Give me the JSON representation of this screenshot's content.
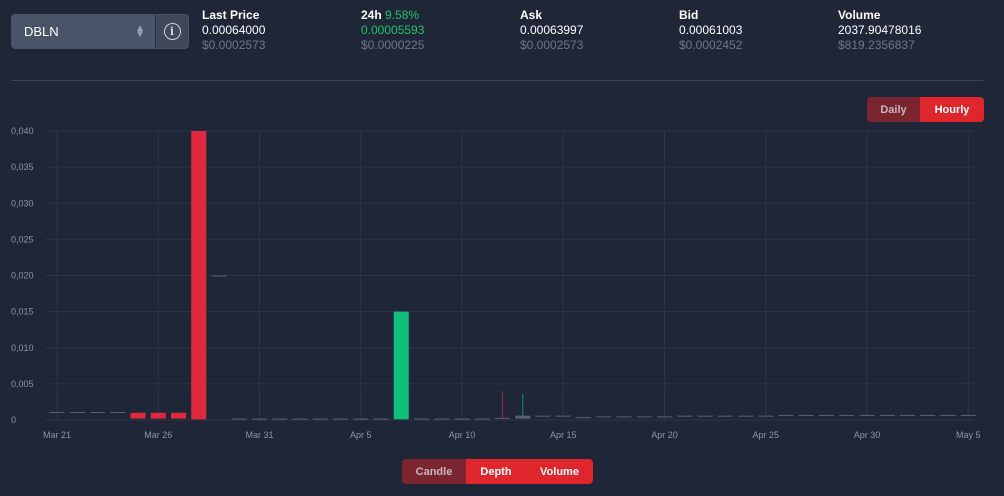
{
  "pair": {
    "selected": "DBLN"
  },
  "stats": [
    {
      "label": "Last Price",
      "change": "",
      "value": "0.00064000",
      "usd": "$0.0002573",
      "value_green": false
    },
    {
      "label": "24h",
      "change": "9.58%",
      "value": "0.00005593",
      "usd": "$0.0000225",
      "value_green": true
    },
    {
      "label": "Ask",
      "change": "",
      "value": "0.00063997",
      "usd": "$0.0002573",
      "value_green": false
    },
    {
      "label": "Bid",
      "change": "",
      "value": "0.00061003",
      "usd": "$0.0002452",
      "value_green": false
    },
    {
      "label": "Volume",
      "change": "",
      "value": "2037.90478016",
      "usd": "$819.2356837",
      "value_green": false
    }
  ],
  "interval_toggle": {
    "daily": "Daily",
    "hourly": "Hourly",
    "active": "hourly"
  },
  "view_toggle": {
    "candle": "Candle",
    "depth": "Depth",
    "volume": "Volume"
  },
  "colors": {
    "up": "#0fbf7a",
    "down": "#e0283f",
    "accent": "#e0262d",
    "grid": "#2c3548",
    "text_muted": "#8d95a6"
  },
  "chart_data": {
    "type": "candlestick",
    "ylim": [
      0,
      0.04
    ],
    "y_ticks": [
      "0",
      "0,005",
      "0,010",
      "0,015",
      "0,020",
      "0,025",
      "0,030",
      "0,035",
      "0,040"
    ],
    "x_labels": [
      "Mar 21",
      "Mar 26",
      "Mar 31",
      "Apr 5",
      "Apr 10",
      "Apr 15",
      "Apr 20",
      "Apr 25",
      "Apr 30",
      "May 5"
    ],
    "start_date": "Mar 21",
    "candles": [
      {
        "date": "Mar 21",
        "open": 0.0011,
        "close": 0.001,
        "high": 0.0011,
        "low": 0.001
      },
      {
        "date": "Mar 22",
        "open": 0.0011,
        "close": 0.001,
        "high": 0.0011,
        "low": 0.001
      },
      {
        "date": "Mar 23",
        "open": 0.0011,
        "close": 0.001,
        "high": 0.0011,
        "low": 0.001
      },
      {
        "date": "Mar 24",
        "open": 0.0011,
        "close": 0.001,
        "high": 0.0011,
        "low": 0.001
      },
      {
        "date": "Mar 25",
        "open": 0.001,
        "close": 0.0002,
        "high": 0.001,
        "low": 0.0002
      },
      {
        "date": "Mar 26",
        "open": 0.001,
        "close": 0.0002,
        "high": 0.001,
        "low": 0.0002
      },
      {
        "date": "Mar 27",
        "open": 0.001,
        "close": 0.0002,
        "high": 0.001,
        "low": 0.0002
      },
      {
        "date": "Mar 28",
        "open": 0.04,
        "close": 0.0001,
        "high": 0.04,
        "low": 0.0001
      },
      {
        "date": "Mar 29",
        "open": 0.02,
        "close": 0.0199,
        "high": 0.02,
        "low": 0.0199
      },
      {
        "date": "Mar 30",
        "open": 0.0002,
        "close": 0.0001,
        "high": 0.0002,
        "low": 0.0001
      },
      {
        "date": "Mar 31",
        "open": 0.0002,
        "close": 0.0001,
        "high": 0.0002,
        "low": 0.0001
      },
      {
        "date": "Apr 1",
        "open": 0.0002,
        "close": 0.0001,
        "high": 0.0002,
        "low": 0.0001
      },
      {
        "date": "Apr 2",
        "open": 0.0002,
        "close": 0.0001,
        "high": 0.0002,
        "low": 0.0001
      },
      {
        "date": "Apr 3",
        "open": 0.0002,
        "close": 0.0001,
        "high": 0.0002,
        "low": 0.0001
      },
      {
        "date": "Apr 4",
        "open": 0.0002,
        "close": 0.0001,
        "high": 0.0002,
        "low": 0.0001
      },
      {
        "date": "Apr 5",
        "open": 0.0002,
        "close": 0.0001,
        "high": 0.0002,
        "low": 0.0001
      },
      {
        "date": "Apr 6",
        "open": 0.0002,
        "close": 0.0001,
        "high": 0.0002,
        "low": 0.0001
      },
      {
        "date": "Apr 7",
        "open": 0.0001,
        "close": 0.015,
        "high": 0.015,
        "low": 0.0001
      },
      {
        "date": "Apr 8",
        "open": 0.0002,
        "close": 0.0001,
        "high": 0.0002,
        "low": 0.0001
      },
      {
        "date": "Apr 9",
        "open": 0.0002,
        "close": 0.0001,
        "high": 0.0002,
        "low": 0.0001
      },
      {
        "date": "Apr 10",
        "open": 0.0002,
        "close": 0.0001,
        "high": 0.0002,
        "low": 0.0001
      },
      {
        "date": "Apr 11",
        "open": 0.0002,
        "close": 0.0001,
        "high": 0.0002,
        "low": 0.0001
      },
      {
        "date": "Apr 12",
        "open": 0.0003,
        "close": 0.0002,
        "high": 0.004,
        "low": 0.0001
      },
      {
        "date": "Apr 13",
        "open": 0.0002,
        "close": 0.0006,
        "high": 0.0036,
        "low": 0.0001
      },
      {
        "date": "Apr 14",
        "open": 0.0006,
        "close": 0.0005,
        "high": 0.0006,
        "low": 0.0005
      },
      {
        "date": "Apr 15",
        "open": 0.0006,
        "close": 0.0005,
        "high": 0.0006,
        "low": 0.0005
      },
      {
        "date": "Apr 16",
        "open": 0.0004,
        "close": 0.0003,
        "high": 0.0004,
        "low": 0.0003
      },
      {
        "date": "Apr 17",
        "open": 0.0004,
        "close": 0.0005,
        "high": 0.0005,
        "low": 0.0004
      },
      {
        "date": "Apr 18",
        "open": 0.0004,
        "close": 0.0005,
        "high": 0.0005,
        "low": 0.0004
      },
      {
        "date": "Apr 19",
        "open": 0.0005,
        "close": 0.0004,
        "high": 0.0005,
        "low": 0.0004
      },
      {
        "date": "Apr 20",
        "open": 0.0005,
        "close": 0.0004,
        "high": 0.0005,
        "low": 0.0004
      },
      {
        "date": "Apr 21",
        "open": 0.0006,
        "close": 0.0005,
        "high": 0.0006,
        "low": 0.0005
      },
      {
        "date": "Apr 22",
        "open": 0.0006,
        "close": 0.0005,
        "high": 0.0006,
        "low": 0.0005
      },
      {
        "date": "Apr 23",
        "open": 0.0006,
        "close": 0.0005,
        "high": 0.0006,
        "low": 0.0005
      },
      {
        "date": "Apr 24",
        "open": 0.0006,
        "close": 0.0005,
        "high": 0.0006,
        "low": 0.0005
      },
      {
        "date": "Apr 25",
        "open": 0.0006,
        "close": 0.0005,
        "high": 0.0006,
        "low": 0.0005
      },
      {
        "date": "Apr 26",
        "open": 0.0007,
        "close": 0.0006,
        "high": 0.0007,
        "low": 0.0006
      },
      {
        "date": "Apr 27",
        "open": 0.0007,
        "close": 0.0006,
        "high": 0.0007,
        "low": 0.0006
      },
      {
        "date": "Apr 28",
        "open": 0.0007,
        "close": 0.0006,
        "high": 0.0007,
        "low": 0.0006
      },
      {
        "date": "Apr 29",
        "open": 0.0007,
        "close": 0.0006,
        "high": 0.0007,
        "low": 0.0006
      },
      {
        "date": "Apr 30",
        "open": 0.0007,
        "close": 0.0006,
        "high": 0.0007,
        "low": 0.0006
      },
      {
        "date": "May 1",
        "open": 0.0007,
        "close": 0.0006,
        "high": 0.0007,
        "low": 0.0006
      },
      {
        "date": "May 2",
        "open": 0.0007,
        "close": 0.0006,
        "high": 0.0007,
        "low": 0.0006
      },
      {
        "date": "May 3",
        "open": 0.0007,
        "close": 0.0006,
        "high": 0.0007,
        "low": 0.0006
      },
      {
        "date": "May 4",
        "open": 0.0007,
        "close": 0.0006,
        "high": 0.0007,
        "low": 0.0006
      },
      {
        "date": "May 5",
        "open": 0.0007,
        "close": 0.0006,
        "high": 0.0007,
        "low": 0.0006
      }
    ],
    "grid": true,
    "legend": "none"
  }
}
